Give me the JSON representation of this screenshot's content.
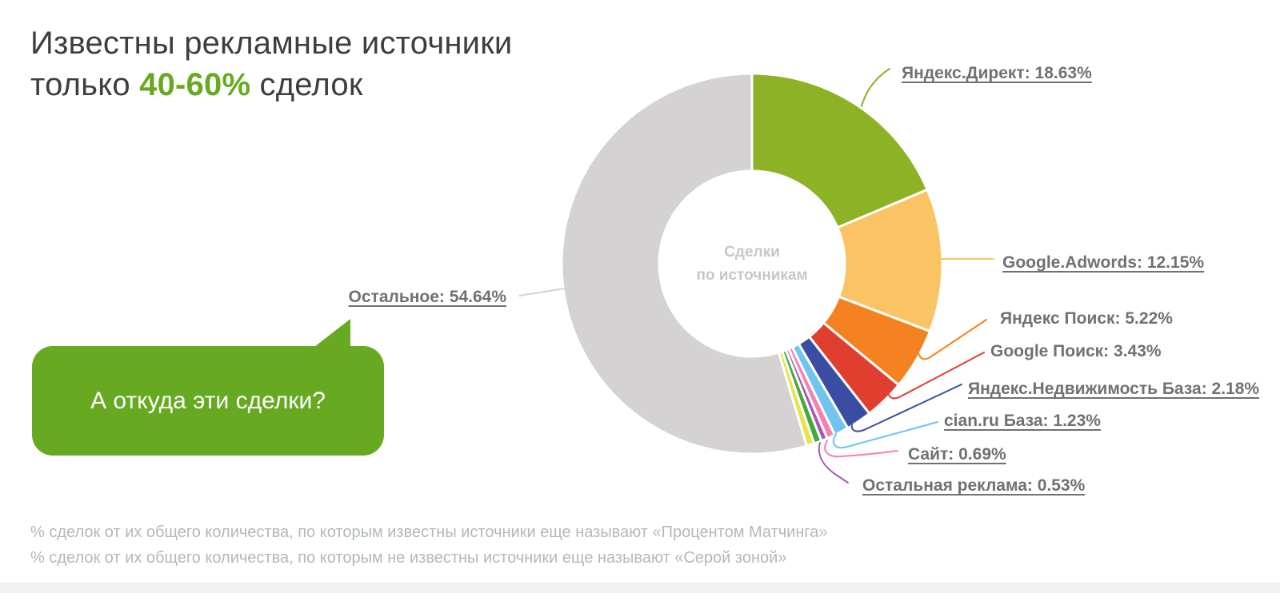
{
  "title": {
    "line1": "Известны рекламные источники",
    "line2_prefix": "только ",
    "line2_accent": "40-60%",
    "line2_suffix": " сделок",
    "accent_color": "#68a922",
    "text_color": "#3e3e3e"
  },
  "speech_bubble": {
    "text": "А откуда эти сделки?",
    "bg_color": "#68a922",
    "text_color": "#ffffff"
  },
  "chart_data": {
    "type": "pie",
    "subtype": "donut",
    "center_label": {
      "line1": "Сделки",
      "line2": "по источникам"
    },
    "start_angle_deg": 0,
    "direction": "clockwise",
    "slices": [
      {
        "name": "Яндекс.Директ",
        "value": 18.63,
        "label": "Яндекс.Директ: 18.63%",
        "color": "#8db226",
        "underlined": true
      },
      {
        "name": "Google.Adwords",
        "value": 12.15,
        "label": "Google.Adwords: 12.15%",
        "color": "#fac464",
        "underlined": true
      },
      {
        "name": "Яндекс Поиск",
        "value": 5.22,
        "label": "Яндекс Поиск: 5.22%",
        "color": "#f58220",
        "underlined": false
      },
      {
        "name": "Google Поиск",
        "value": 3.43,
        "label": "Google Поиск: 3.43%",
        "color": "#e03e2f",
        "underlined": false
      },
      {
        "name": "Яндекс.Недвижимость База",
        "value": 2.18,
        "label": "Яндекс.Недвижимость База: 2.18%",
        "color": "#3a4da2",
        "underlined": true
      },
      {
        "name": "cian.ru База",
        "value": 1.23,
        "label": "cian.ru База: 1.23%",
        "color": "#6fc5ed",
        "underlined": true
      },
      {
        "name": "Сайт",
        "value": 0.69,
        "label": "Сайт: 0.69%",
        "color": "#f77fb4",
        "underlined": true
      },
      {
        "name": "Остальная реклама",
        "value": 0.53,
        "label": "Остальная реклама: 0.53%",
        "color": "#a45ab4",
        "underlined": true
      },
      {
        "name": "",
        "value": 0.65,
        "label": "",
        "color": "#44a93c",
        "underlined": false
      },
      {
        "name": "",
        "value": 0.65,
        "label": "",
        "color": "#e6e44c",
        "underlined": false
      },
      {
        "name": "Остальное",
        "value": 54.64,
        "label": "Остальное: 54.64%",
        "color": "#d5d2d3",
        "underlined": true
      }
    ]
  },
  "footer": {
    "line1": "% сделок от их общего количества, по которым известны источники еще называют «Процентом Матчинга»",
    "line2": "% сделок от их общего количества, по которым не известны источники еще называют «Серой зоной»"
  }
}
